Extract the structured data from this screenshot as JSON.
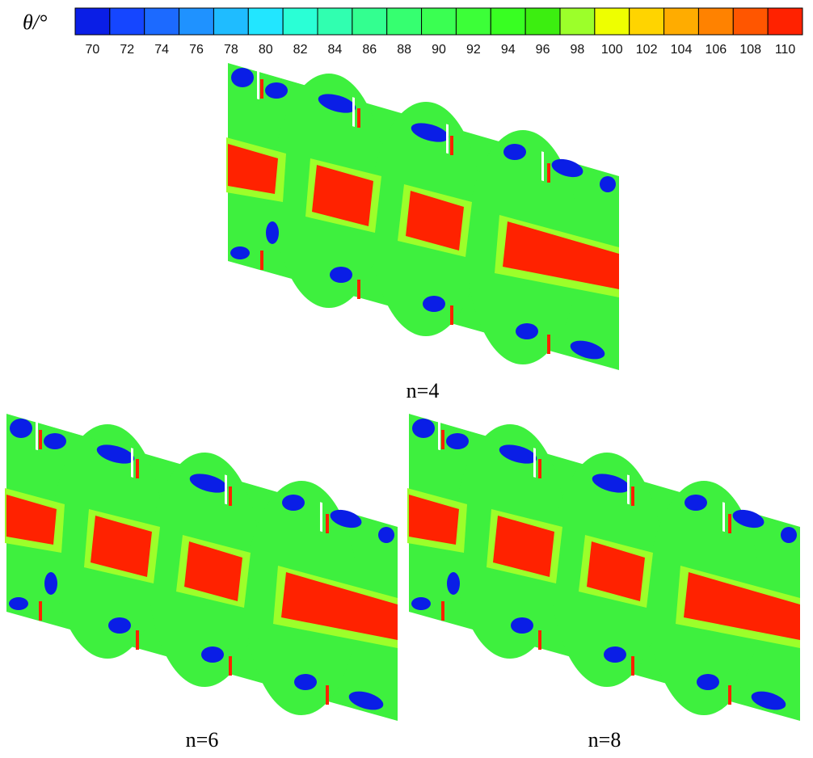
{
  "colorbar": {
    "label": "θ/°",
    "ticks": [
      70,
      72,
      74,
      76,
      78,
      80,
      82,
      84,
      86,
      88,
      90,
      92,
      94,
      96,
      98,
      100,
      102,
      104,
      106,
      108,
      110
    ],
    "colors": [
      "#0a1ee6",
      "#1546ff",
      "#1c6aff",
      "#1f92ff",
      "#1fbcff",
      "#22e6ff",
      "#2affd6",
      "#30ffb0",
      "#33ff90",
      "#36ff70",
      "#3aff52",
      "#3cff38",
      "#38ff22",
      "#3cee10",
      "#9cff2a",
      "#eeff00",
      "#ffd400",
      "#ffac00",
      "#ff8200",
      "#ff5600",
      "#ff2200"
    ]
  },
  "panels": [
    {
      "label": "n=4"
    },
    {
      "label": "n=6"
    },
    {
      "label": "n=8"
    }
  ]
}
